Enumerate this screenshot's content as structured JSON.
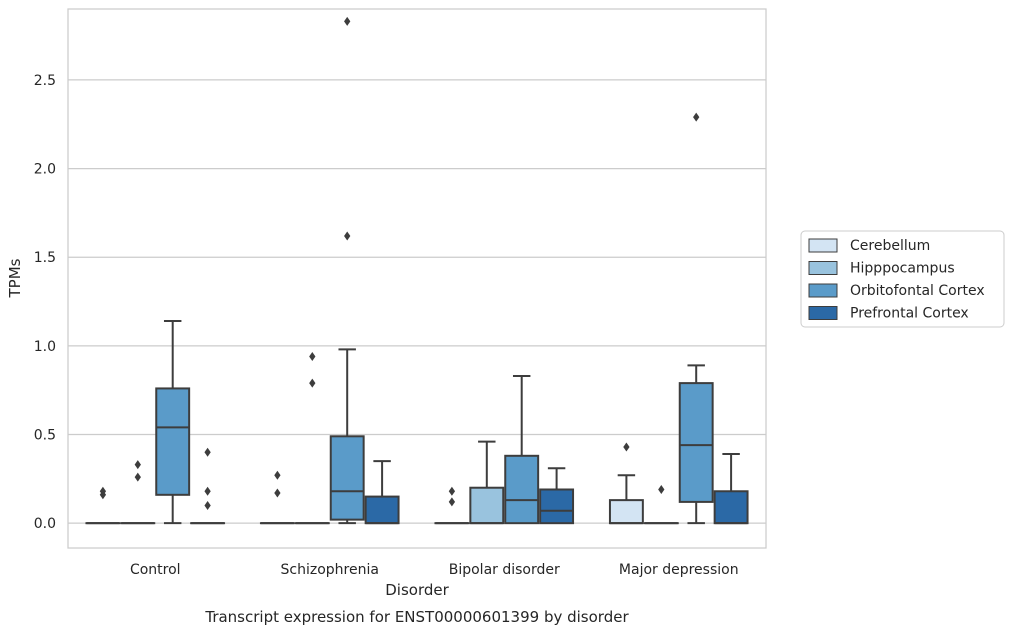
{
  "caption": "Transcript expression for ENST00000601399 by disorder",
  "chart_data": {
    "type": "box",
    "title": "",
    "xlabel": "Disorder",
    "ylabel": "TPMs",
    "ylim": [
      -0.14,
      2.9
    ],
    "yticks": [
      0.0,
      0.5,
      1.0,
      1.5,
      2.0,
      2.5
    ],
    "ytick_labels": [
      "0.0",
      "0.5",
      "1.0",
      "1.5",
      "2.0",
      "2.5"
    ],
    "grid": "horizontal",
    "legend_position": "right",
    "categories": [
      "Control",
      "Schizophrenia",
      "Bipolar disorder",
      "Major depression"
    ],
    "series": [
      {
        "name": "Cerebellum",
        "color": "#d3e4f3",
        "boxes": [
          {
            "q1": 0,
            "median": 0,
            "q3": 0,
            "whisker_low": 0,
            "whisker_high": 0,
            "outliers": [
              0.16,
              0.18
            ]
          },
          {
            "q1": 0,
            "median": 0,
            "q3": 0,
            "whisker_low": 0,
            "whisker_high": 0,
            "outliers": [
              0.17,
              0.27
            ]
          },
          {
            "q1": 0,
            "median": 0,
            "q3": 0,
            "whisker_low": 0,
            "whisker_high": 0,
            "outliers": [
              0.12,
              0.18
            ]
          },
          {
            "q1": 0,
            "median": 0,
            "q3": 0.13,
            "whisker_low": 0,
            "whisker_high": 0.27,
            "outliers": [
              0.43
            ]
          }
        ]
      },
      {
        "name": "Hipppocampus",
        "color": "#99c3de",
        "boxes": [
          {
            "q1": 0,
            "median": 0,
            "q3": 0,
            "whisker_low": 0,
            "whisker_high": 0,
            "outliers": [
              0.26,
              0.33
            ]
          },
          {
            "q1": 0,
            "median": 0,
            "q3": 0,
            "whisker_low": 0,
            "whisker_high": 0,
            "outliers": [
              0.79,
              0.94
            ]
          },
          {
            "q1": 0,
            "median": 0,
            "q3": 0.2,
            "whisker_low": 0,
            "whisker_high": 0.46,
            "outliers": []
          },
          {
            "q1": 0,
            "median": 0,
            "q3": 0,
            "whisker_low": 0,
            "whisker_high": 0,
            "outliers": [
              0.19
            ]
          }
        ]
      },
      {
        "name": "Orbitofontal Cortex",
        "color": "#5a9bc9",
        "boxes": [
          {
            "q1": 0.16,
            "median": 0.54,
            "q3": 0.76,
            "whisker_low": 0,
            "whisker_high": 1.14,
            "outliers": []
          },
          {
            "q1": 0.02,
            "median": 0.18,
            "q3": 0.49,
            "whisker_low": 0,
            "whisker_high": 0.98,
            "outliers": [
              1.62,
              2.83
            ]
          },
          {
            "q1": 0,
            "median": 0.13,
            "q3": 0.38,
            "whisker_low": 0,
            "whisker_high": 0.83,
            "outliers": []
          },
          {
            "q1": 0.12,
            "median": 0.44,
            "q3": 0.79,
            "whisker_low": 0,
            "whisker_high": 0.89,
            "outliers": [
              2.29
            ]
          }
        ]
      },
      {
        "name": "Prefrontal Cortex",
        "color": "#2b69a6",
        "boxes": [
          {
            "q1": 0,
            "median": 0,
            "q3": 0,
            "whisker_low": 0,
            "whisker_high": 0,
            "outliers": [
              0.1,
              0.18,
              0.4
            ]
          },
          {
            "q1": 0,
            "median": 0,
            "q3": 0.15,
            "whisker_low": 0,
            "whisker_high": 0.35,
            "outliers": []
          },
          {
            "q1": 0,
            "median": 0.07,
            "q3": 0.19,
            "whisker_low": 0,
            "whisker_high": 0.31,
            "outliers": []
          },
          {
            "q1": 0,
            "median": 0,
            "q3": 0.18,
            "whisker_low": 0,
            "whisker_high": 0.39,
            "outliers": []
          }
        ]
      }
    ]
  }
}
